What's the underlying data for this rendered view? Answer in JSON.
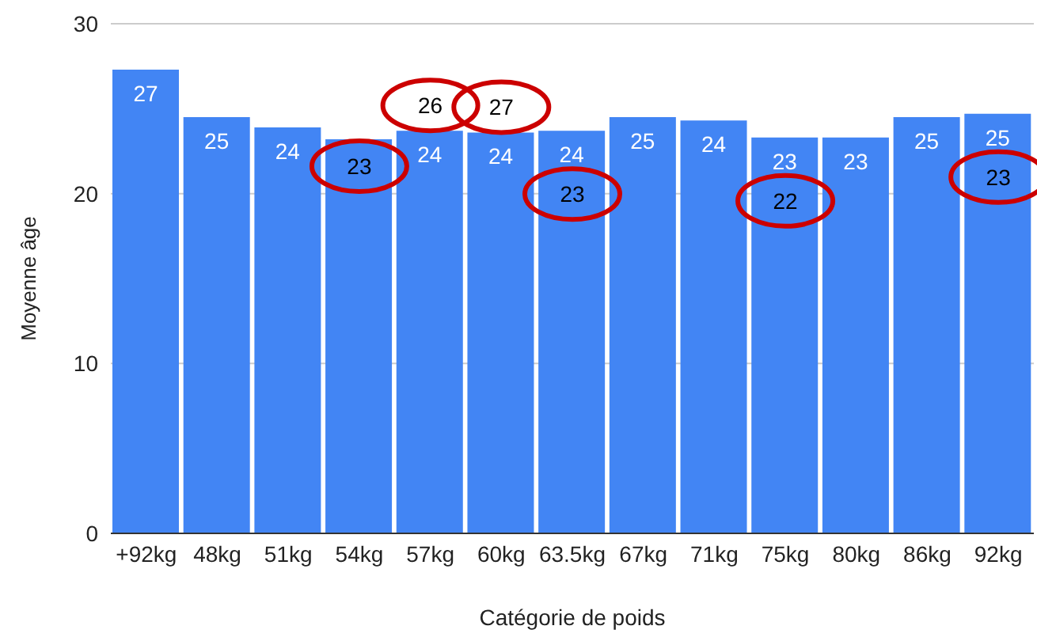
{
  "chart_data": {
    "type": "bar",
    "xlabel": "Catégorie de poids",
    "ylabel": "Moyenne âge",
    "categories": [
      "+92kg",
      "48kg",
      "51kg",
      "54kg",
      "57kg",
      "60kg",
      "63.5kg",
      "67kg",
      "71kg",
      "75kg",
      "80kg",
      "86kg",
      "92kg"
    ],
    "values": [
      27.3,
      24.5,
      23.9,
      23.2,
      23.7,
      23.6,
      23.7,
      24.5,
      24.3,
      23.3,
      23.3,
      24.5,
      24.7
    ],
    "value_labels": [
      "27",
      "25",
      "24",
      null,
      "24",
      "24",
      "24",
      "25",
      "24",
      "23",
      "23",
      "25",
      "25"
    ],
    "color": "#4285f4",
    "ylim": [
      0,
      30
    ],
    "yticks": [
      0,
      10,
      20,
      30
    ],
    "grid": "y",
    "annotations": [
      {
        "text": "23",
        "x": "54kg",
        "y": 23.2
      },
      {
        "text": "26",
        "x": "57kg",
        "y": 23.7
      },
      {
        "text": "27",
        "x": "60kg",
        "y": 23.6
      },
      {
        "text": "23",
        "x": "63.5kg",
        "y": 23.7
      },
      {
        "text": "22",
        "x": "75kg",
        "y": 23.3
      },
      {
        "text": "23",
        "x": "92kg",
        "y": 24.7
      }
    ]
  }
}
